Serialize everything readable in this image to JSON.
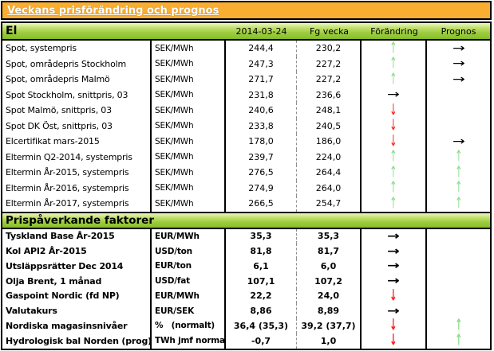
{
  "title_bar": {
    "title": "Veckans prisförändring och prognos"
  },
  "columns": {
    "date": "2014-03-24",
    "prev_week": "Fg vecka",
    "change": "Förändring",
    "forecast": "Prognos"
  },
  "arrow_glyphs": {
    "up": "↑",
    "down": "↓",
    "right": "→"
  },
  "colors": {
    "title_bg": "#F9AE32",
    "section_green_top": "#EEF7C4",
    "section_green_bottom": "#7FB62A",
    "arrow_up": "#8FDC8F",
    "arrow_down": "#FF1E1E",
    "arrow_right": "#000000"
  },
  "sections": [
    {
      "name": "El",
      "bold": false,
      "rows": [
        {
          "label": "Spot, systempris",
          "unit": "SEK/MWh",
          "current": "244,4",
          "prev": "230,2",
          "change": "up",
          "forecast": "right"
        },
        {
          "label": "Spot, områdepris Stockholm",
          "unit": "SEK/MWh",
          "current": "247,3",
          "prev": "227,2",
          "change": "up",
          "forecast": "right"
        },
        {
          "label": "Spot, områdepris Malmö",
          "unit": "SEK/MWh",
          "current": "271,7",
          "prev": "227,2",
          "change": "up",
          "forecast": "right"
        },
        {
          "label": "Spot Stockholm, snittpris,  03",
          "unit": "SEK/MWh",
          "current": "231,8",
          "prev": "236,6",
          "change": "right",
          "forecast": ""
        },
        {
          "label": "Spot Malmö, snittpris,  03",
          "unit": "SEK/MWh",
          "current": "240,6",
          "prev": "248,1",
          "change": "down",
          "forecast": ""
        },
        {
          "label": "Spot DK Öst, snittpris,  03",
          "unit": "SEK/MWh",
          "current": "233,8",
          "prev": "240,5",
          "change": "down",
          "forecast": ""
        },
        {
          "label": "Elcertifikat mars-2015",
          "unit": "SEK/MWh",
          "current": "178,0",
          "prev": "186,0",
          "change": "down",
          "forecast": "right"
        },
        {
          "label": "Eltermin Q2-2014, systempris",
          "unit": "SEK/MWh",
          "current": "239,7",
          "prev": "224,0",
          "change": "up",
          "forecast": "up"
        },
        {
          "label": "Eltermin År-2015, systempris",
          "unit": "SEK/MWh",
          "current": "276,5",
          "prev": "264,4",
          "change": "up",
          "forecast": "up"
        },
        {
          "label": "Eltermin År-2016, systempris",
          "unit": "SEK/MWh",
          "current": "274,9",
          "prev": "264,0",
          "change": "up",
          "forecast": "up"
        },
        {
          "label": "Eltermin År-2017, systempris",
          "unit": "SEK/MWh",
          "current": "266,5",
          "prev": "254,7",
          "change": "up",
          "forecast": "up"
        }
      ]
    },
    {
      "name": "Prispåverkande faktorer",
      "bold": true,
      "rows": [
        {
          "label": "Tyskland Base År-2015",
          "unit": "EUR/MWh",
          "current": "35,3",
          "prev": "35,3",
          "change": "right",
          "forecast": ""
        },
        {
          "label": "Kol API2 År-2015",
          "unit": "USD/ton",
          "current": "81,8",
          "prev": "81,7",
          "change": "right",
          "forecast": ""
        },
        {
          "label": "Utsläppsrätter Dec 2014",
          "unit": "EUR/ton",
          "current": "6,1",
          "prev": "6,0",
          "change": "right",
          "forecast": ""
        },
        {
          "label": "Olja Brent, 1 månad",
          "unit": "USD/fat",
          "current": "107,1",
          "prev": "107,2",
          "change": "right",
          "forecast": ""
        },
        {
          "label": "Gaspoint Nordic (fd NP)",
          "unit": "EUR/MWh",
          "current": "22,2",
          "prev": "24,0",
          "change": "down",
          "forecast": ""
        },
        {
          "label": "Valutakurs",
          "unit": "EUR/SEK",
          "current": "8,86",
          "prev": "8,89",
          "change": "right",
          "forecast": ""
        },
        {
          "label": "Nordiska magasinsnivåer",
          "unit": "%   (normalt)",
          "current": "36,4 (35,3)",
          "prev": "39,2 (37,7)",
          "change": "down",
          "forecast": "up"
        },
        {
          "label": "Hydrologisk bal Norden (prog)",
          "unit": "TWh jmf normalt",
          "current": "-0,7",
          "prev": "1,0",
          "change": "down",
          "forecast": "up"
        }
      ]
    }
  ]
}
